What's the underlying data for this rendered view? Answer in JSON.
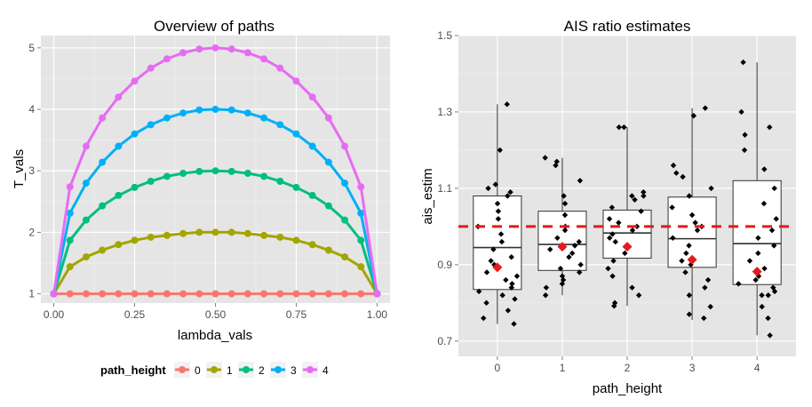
{
  "chart_data": [
    {
      "type": "line",
      "title": "Overview of paths",
      "xlabel": "lambda_vals",
      "ylabel": "T_vals",
      "xlim": [
        -0.04,
        1.04
      ],
      "ylim": [
        0.85,
        5.2
      ],
      "xticks": [
        "0.00",
        "0.25",
        "0.50",
        "0.75",
        "1.00"
      ],
      "xtick_values": [
        0,
        0.25,
        0.5,
        0.75,
        1.0
      ],
      "yticks": [
        "1",
        "2",
        "3",
        "4",
        "5"
      ],
      "ytick_values": [
        1,
        2,
        3,
        4,
        5
      ],
      "x": [
        0,
        0.05,
        0.1,
        0.15,
        0.2,
        0.25,
        0.3,
        0.35,
        0.4,
        0.45,
        0.5,
        0.55,
        0.6,
        0.65,
        0.7,
        0.75,
        0.8,
        0.85,
        0.9,
        0.95,
        1.0
      ],
      "legend": {
        "title": "path_height",
        "position": "bottom",
        "entries": [
          "0",
          "1",
          "2",
          "3",
          "4"
        ]
      },
      "series": [
        {
          "name": "0",
          "color": "#F8766D",
          "height": 0,
          "values": [
            1,
            1,
            1,
            1,
            1,
            1,
            1,
            1,
            1,
            1,
            1,
            1,
            1,
            1,
            1,
            1,
            1,
            1,
            1,
            1,
            1
          ]
        },
        {
          "name": "1",
          "color": "#A3A500",
          "height": 1,
          "values": [
            1,
            1.44,
            1.6,
            1.71,
            1.8,
            1.87,
            1.92,
            1.95,
            1.98,
            2,
            2,
            2,
            1.98,
            1.95,
            1.92,
            1.87,
            1.8,
            1.71,
            1.6,
            1.44,
            1
          ]
        },
        {
          "name": "2",
          "color": "#00BF7D",
          "height": 2,
          "values": [
            1,
            1.87,
            2.2,
            2.43,
            2.6,
            2.73,
            2.83,
            2.91,
            2.96,
            2.99,
            3,
            2.99,
            2.96,
            2.91,
            2.83,
            2.73,
            2.6,
            2.43,
            2.2,
            1.87,
            1
          ]
        },
        {
          "name": "3",
          "color": "#00B0F6",
          "height": 3,
          "values": [
            1,
            2.31,
            2.8,
            3.14,
            3.4,
            3.6,
            3.75,
            3.86,
            3.94,
            3.99,
            4,
            3.99,
            3.94,
            3.86,
            3.75,
            3.6,
            3.4,
            3.14,
            2.8,
            2.31,
            1
          ]
        },
        {
          "name": "4",
          "color": "#E76BF3",
          "height": 4,
          "values": [
            1,
            2.74,
            3.4,
            3.86,
            4.2,
            4.46,
            4.67,
            4.82,
            4.92,
            4.98,
            5,
            4.98,
            4.92,
            4.82,
            4.67,
            4.46,
            4.2,
            3.86,
            3.4,
            2.74,
            1
          ]
        }
      ],
      "grid": true,
      "panel_color": "#E5E5E5"
    },
    {
      "type": "boxplot",
      "title": "AIS ratio estimates",
      "xlabel": "path_height",
      "ylabel": "ais_estim",
      "categories": [
        "0",
        "1",
        "2",
        "3",
        "4"
      ],
      "ylim": [
        0.66,
        1.5
      ],
      "yticks": [
        "0.7",
        "0.9",
        "1.1",
        "1.3",
        "1.5"
      ],
      "ytick_values": [
        0.7,
        0.9,
        1.1,
        1.3,
        1.5
      ],
      "reference_line": {
        "y": 1.0,
        "color": "#E41A1C",
        "style": "dashed"
      },
      "mean_marker_color": "#E41A1C",
      "boxes": [
        {
          "category": "0",
          "q1": 0.835,
          "median": 0.945,
          "q3": 1.08,
          "whisker_low": 0.745,
          "whisker_high": 1.32,
          "mean": 0.893
        },
        {
          "category": "1",
          "q1": 0.885,
          "median": 0.953,
          "q3": 1.04,
          "whisker_low": 0.82,
          "whisker_high": 1.18,
          "mean": 0.947
        },
        {
          "category": "2",
          "q1": 0.917,
          "median": 0.983,
          "q3": 1.043,
          "whisker_low": 0.792,
          "whisker_high": 1.26,
          "mean": 0.947
        },
        {
          "category": "3",
          "q1": 0.893,
          "median": 0.968,
          "q3": 1.077,
          "whisker_low": 0.755,
          "whisker_high": 1.31,
          "mean": 0.913
        },
        {
          "category": "4",
          "q1": 0.848,
          "median": 0.955,
          "q3": 1.12,
          "whisker_low": 0.715,
          "whisker_high": 1.43,
          "mean": 0.882
        }
      ],
      "points": [
        {
          "category": "0",
          "values": [
            1.32,
            1.2,
            1.11,
            1.1,
            1.09,
            1.08,
            1.06,
            1.04,
            1.02,
            1.0,
            0.98,
            0.96,
            0.94,
            0.92,
            0.91,
            0.9,
            0.88,
            0.87,
            0.86,
            0.85,
            0.84,
            0.83,
            0.82,
            0.81,
            0.8,
            0.78,
            0.76,
            0.745
          ]
        },
        {
          "category": "1",
          "values": [
            1.18,
            1.17,
            1.16,
            1.12,
            1.08,
            1.06,
            1.03,
            1.0,
            0.99,
            0.97,
            0.96,
            0.95,
            0.94,
            0.93,
            0.92,
            0.9,
            0.89,
            0.88,
            0.87,
            0.86,
            0.85,
            0.84,
            0.82
          ]
        },
        {
          "category": "2",
          "values": [
            1.26,
            1.26,
            1.09,
            1.08,
            1.08,
            1.07,
            1.05,
            1.04,
            1.02,
            1.01,
            1.0,
            0.99,
            0.98,
            0.97,
            0.96,
            0.95,
            0.93,
            0.91,
            0.89,
            0.87,
            0.84,
            0.82,
            0.8,
            0.792
          ]
        },
        {
          "category": "3",
          "values": [
            1.31,
            1.29,
            1.16,
            1.14,
            1.13,
            1.1,
            1.08,
            1.05,
            1.03,
            1.01,
            1.0,
            0.99,
            0.97,
            0.95,
            0.93,
            0.91,
            0.9,
            0.88,
            0.86,
            0.84,
            0.82,
            0.79,
            0.77,
            0.76
          ]
        },
        {
          "category": "4",
          "values": [
            1.43,
            1.3,
            1.26,
            1.24,
            1.2,
            1.15,
            1.1,
            1.06,
            1.02,
            0.99,
            0.97,
            0.95,
            0.93,
            0.91,
            0.89,
            0.87,
            0.86,
            0.85,
            0.84,
            0.83,
            0.82,
            0.82,
            0.79,
            0.76,
            0.715
          ]
        }
      ],
      "grid": true,
      "panel_color": "#E5E5E5"
    }
  ]
}
